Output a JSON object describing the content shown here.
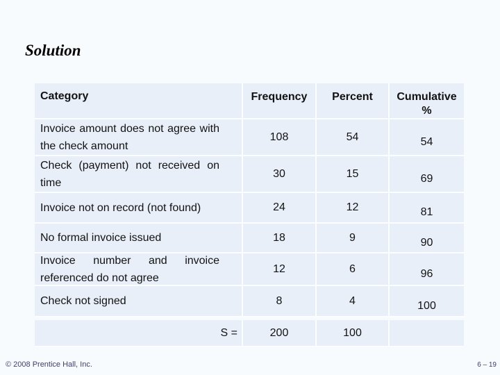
{
  "slide": {
    "title": "Solution",
    "footer_copyright": "© 2008 Prentice Hall, Inc.",
    "footer_page": "6 – 19"
  },
  "colors": {
    "page_background": "#f8fbfe",
    "cell_background": "#e9eff9",
    "grid_line": "#fbfdff",
    "text": "#121212",
    "footer_text": "#3f3f66"
  },
  "table": {
    "headers": {
      "category": "Category",
      "frequency": "Frequency",
      "percent": "Percent",
      "cumulative_l1": "Cumulative",
      "cumulative_l2": "%"
    },
    "rows": [
      {
        "category": "Invoice amount does not agree with the check amount",
        "frequency": "108",
        "percent": "54",
        "cumulative": "54"
      },
      {
        "category": "Check (payment) not received on time",
        "frequency": "30",
        "percent": "15",
        "cumulative": "69"
      },
      {
        "category": "Invoice not on record (not found)",
        "frequency": "24",
        "percent": "12",
        "cumulative": "81"
      },
      {
        "category": "No formal invoice issued",
        "frequency": "18",
        "percent": "9",
        "cumulative": "90"
      },
      {
        "category": "Invoice number and invoice referenced do not agree",
        "frequency": "12",
        "percent": "6",
        "cumulative": "96"
      },
      {
        "category": "Check not signed",
        "frequency": "8",
        "percent": "4",
        "cumulative": "100"
      }
    ],
    "total": {
      "label": "S =",
      "frequency": "200",
      "percent": "100",
      "cumulative": ""
    }
  }
}
